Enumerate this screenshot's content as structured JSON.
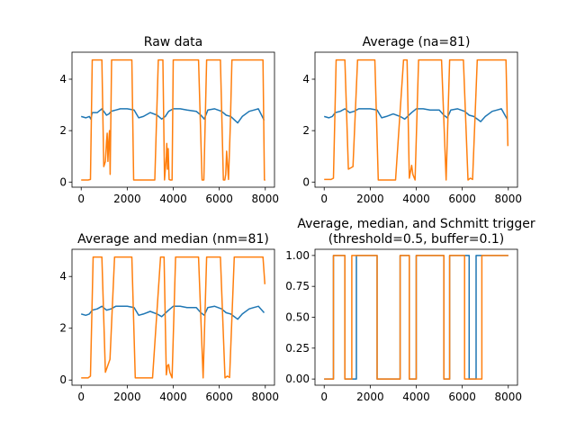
{
  "chart_data": [
    {
      "type": "line",
      "title": "Raw data",
      "xlim": [
        -400,
        8400
      ],
      "ylim": [
        -0.2,
        5.05
      ],
      "xticks": [
        0,
        2000,
        4000,
        6000,
        8000
      ],
      "xtick_labels": [
        "0",
        "2000",
        "4000",
        "6000",
        "8000"
      ],
      "yticks": [
        0,
        2,
        4
      ],
      "ytick_labels": [
        "0",
        "2",
        "4"
      ],
      "series": [
        {
          "name": "blue",
          "color": "#1f77b4",
          "x": [
            0,
            200,
            350,
            420,
            480,
            700,
            900,
            1100,
            1200,
            1300,
            1500,
            1700,
            2000,
            2300,
            2500,
            2700,
            3000,
            3300,
            3500,
            3650,
            3800,
            4000,
            4300,
            4600,
            5000,
            5200,
            5350,
            5500,
            5800,
            6100,
            6300,
            6500,
            6800,
            7000,
            7300,
            7500,
            7700,
            7950
          ],
          "y": [
            2.55,
            2.5,
            2.55,
            2.45,
            2.7,
            2.7,
            2.85,
            2.6,
            2.65,
            2.75,
            2.8,
            2.85,
            2.85,
            2.8,
            2.5,
            2.55,
            2.7,
            2.6,
            2.45,
            2.55,
            2.75,
            2.85,
            2.85,
            2.8,
            2.75,
            2.6,
            2.45,
            2.8,
            2.85,
            2.75,
            2.6,
            2.55,
            2.3,
            2.55,
            2.75,
            2.8,
            2.85,
            2.4
          ]
        },
        {
          "name": "orange",
          "color": "#ff7f0e",
          "x": [
            0,
            300,
            400,
            480,
            900,
            980,
            1050,
            1100,
            1130,
            1160,
            1200,
            1230,
            1260,
            1320,
            1420,
            2200,
            2280,
            2500,
            2520,
            3200,
            3350,
            3550,
            3620,
            3700,
            3720,
            3750,
            3780,
            3820,
            3880,
            3950,
            4000,
            4100,
            4200,
            5100,
            5250,
            5330,
            5450,
            6050,
            6180,
            6240,
            6280,
            6320,
            6400,
            6480,
            6550,
            6650,
            7900,
            7960,
            8000
          ],
          "y": [
            0.08,
            0.08,
            0.1,
            4.75,
            4.75,
            0.6,
            0.8,
            1.6,
            1.9,
            0.8,
            1.6,
            2.0,
            0.3,
            4.75,
            4.75,
            4.75,
            0.08,
            0.08,
            0.08,
            0.08,
            4.75,
            4.75,
            0.08,
            1.0,
            1.5,
            0.5,
            1.3,
            0.1,
            0.08,
            0.08,
            4.75,
            4.75,
            4.75,
            4.75,
            0.08,
            0.08,
            4.75,
            4.75,
            0.08,
            0.08,
            0.3,
            1.2,
            0.1,
            2.2,
            4.75,
            4.75,
            4.75,
            0.08,
            0.08
          ]
        }
      ]
    },
    {
      "type": "line",
      "title": "Average (na=81)",
      "xlim": [
        -400,
        8400
      ],
      "ylim": [
        -0.2,
        5.05
      ],
      "xticks": [
        0,
        2000,
        4000,
        6000,
        8000
      ],
      "xtick_labels": [
        "0",
        "2000",
        "4000",
        "6000",
        "8000"
      ],
      "yticks": [
        0,
        2,
        4
      ],
      "ytick_labels": [
        "0",
        "2",
        "4"
      ],
      "series": [
        {
          "name": "blue",
          "color": "#1f77b4",
          "x": [
            0,
            200,
            350,
            480,
            700,
            900,
            1100,
            1300,
            1500,
            1700,
            2000,
            2300,
            2500,
            2700,
            3000,
            3300,
            3500,
            3800,
            4000,
            4300,
            4600,
            5000,
            5200,
            5350,
            5500,
            5800,
            6100,
            6300,
            6500,
            6800,
            7000,
            7300,
            7500,
            7700,
            7950
          ],
          "y": [
            2.55,
            2.5,
            2.55,
            2.7,
            2.75,
            2.85,
            2.7,
            2.75,
            2.85,
            2.85,
            2.85,
            2.8,
            2.5,
            2.55,
            2.65,
            2.55,
            2.45,
            2.7,
            2.85,
            2.85,
            2.8,
            2.8,
            2.6,
            2.5,
            2.8,
            2.85,
            2.75,
            2.6,
            2.55,
            2.35,
            2.55,
            2.75,
            2.8,
            2.85,
            2.45
          ]
        },
        {
          "name": "orange",
          "color": "#ff7f0e",
          "x": [
            0,
            300,
            400,
            520,
            900,
            1050,
            1250,
            1450,
            2200,
            2350,
            3100,
            3450,
            3600,
            3700,
            3750,
            3800,
            3850,
            3950,
            4100,
            5100,
            5300,
            5450,
            6050,
            6250,
            6350,
            6450,
            6650,
            7900,
            7980
          ],
          "y": [
            0.1,
            0.1,
            0.15,
            4.75,
            4.75,
            0.5,
            0.6,
            4.75,
            4.75,
            0.08,
            0.08,
            4.75,
            4.75,
            0.15,
            0.4,
            0.65,
            0.3,
            0.08,
            4.75,
            4.75,
            0.08,
            4.75,
            4.75,
            0.08,
            0.15,
            0.1,
            4.75,
            4.75,
            1.4
          ]
        }
      ]
    },
    {
      "type": "line",
      "title": "Average and median (nm=81)",
      "xlim": [
        -400,
        8400
      ],
      "ylim": [
        -0.2,
        5.05
      ],
      "xticks": [
        0,
        2000,
        4000,
        6000,
        8000
      ],
      "xtick_labels": [
        "0",
        "2000",
        "4000",
        "6000",
        "8000"
      ],
      "yticks": [
        0,
        2,
        4
      ],
      "ytick_labels": [
        "0",
        "2",
        "4"
      ],
      "series": [
        {
          "name": "blue",
          "color": "#1f77b4",
          "x": [
            0,
            200,
            350,
            480,
            700,
            900,
            1100,
            1300,
            1500,
            1700,
            2000,
            2300,
            2500,
            2700,
            3000,
            3300,
            3500,
            3800,
            4000,
            4300,
            4600,
            5000,
            5200,
            5350,
            5500,
            5800,
            6100,
            6300,
            6500,
            6800,
            7000,
            7300,
            7500,
            7700,
            7950
          ],
          "y": [
            2.55,
            2.5,
            2.55,
            2.7,
            2.75,
            2.85,
            2.7,
            2.75,
            2.85,
            2.85,
            2.85,
            2.8,
            2.5,
            2.55,
            2.65,
            2.55,
            2.45,
            2.7,
            2.85,
            2.85,
            2.8,
            2.8,
            2.6,
            2.5,
            2.8,
            2.85,
            2.75,
            2.6,
            2.55,
            2.35,
            2.55,
            2.75,
            2.8,
            2.85,
            2.6
          ]
        },
        {
          "name": "orange",
          "color": "#ff7f0e",
          "x": [
            0,
            300,
            400,
            520,
            900,
            1050,
            1250,
            1450,
            2200,
            2350,
            3100,
            3450,
            3600,
            3700,
            3750,
            3800,
            3850,
            3950,
            4100,
            5100,
            5300,
            5450,
            6050,
            6250,
            6350,
            6450,
            6650,
            7900,
            7980
          ],
          "y": [
            0.08,
            0.08,
            0.15,
            4.75,
            4.75,
            0.3,
            0.8,
            4.75,
            4.75,
            0.08,
            0.08,
            4.75,
            4.75,
            0.2,
            0.55,
            0.6,
            0.3,
            0.08,
            4.75,
            4.75,
            0.08,
            4.75,
            4.75,
            0.08,
            0.15,
            0.1,
            4.75,
            4.75,
            3.7
          ]
        }
      ]
    },
    {
      "type": "line",
      "title": "Average, median, and Schmitt trigger\n(threshold=0.5, buffer=0.1)",
      "xlim": [
        -400,
        8400
      ],
      "ylim": [
        -0.05,
        1.05
      ],
      "xticks": [
        0,
        2000,
        4000,
        6000,
        8000
      ],
      "xtick_labels": [
        "0",
        "2000",
        "4000",
        "6000",
        "8000"
      ],
      "yticks": [
        0,
        0.25,
        0.5,
        0.75,
        1.0
      ],
      "ytick_labels": [
        "0.00",
        "0.25",
        "0.50",
        "0.75",
        "1.00"
      ],
      "series": [
        {
          "name": "blue",
          "color": "#1f77b4",
          "x": [
            0,
            400,
            400,
            900,
            900,
            1400,
            1400,
            2300,
            2300,
            3300,
            3300,
            3700,
            3700,
            4000,
            4000,
            5200,
            5200,
            5450,
            5450,
            6300,
            6300,
            6600,
            6600,
            8000
          ],
          "y": [
            0,
            0,
            1,
            1,
            0,
            0,
            1,
            1,
            0,
            0,
            1,
            1,
            0,
            0,
            1,
            1,
            0,
            0,
            1,
            1,
            0,
            0,
            1,
            1
          ]
        },
        {
          "name": "orange",
          "color": "#ff7f0e",
          "x": [
            0,
            400,
            400,
            900,
            900,
            1200,
            1200,
            2300,
            2300,
            3300,
            3300,
            3700,
            3700,
            4000,
            4000,
            5200,
            5200,
            5450,
            5450,
            6100,
            6100,
            6850,
            6850,
            8000
          ],
          "y": [
            0,
            0,
            1,
            1,
            0,
            0,
            1,
            1,
            0,
            0,
            1,
            1,
            0,
            0,
            1,
            1,
            0,
            0,
            1,
            1,
            0,
            0,
            1,
            1
          ]
        }
      ]
    }
  ]
}
